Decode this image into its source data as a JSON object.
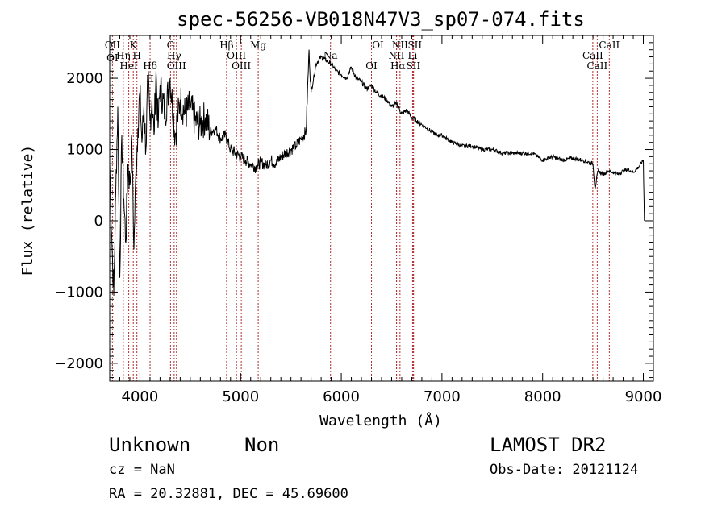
{
  "chart_data": {
    "type": "line",
    "title": "spec-56256-VB018N47V3_sp07-074.fits",
    "xlabel": "Wavelength (Å)",
    "ylabel": "Flux (relative)",
    "xlim": [
      3700,
      9100
    ],
    "ylim": [
      -2250,
      2600
    ],
    "xticks": [
      4000,
      5000,
      6000,
      7000,
      8000,
      9000
    ],
    "yticks": [
      -2000,
      -1000,
      0,
      1000,
      2000
    ],
    "xtick_labels": [
      "4000",
      "5000",
      "6000",
      "7000",
      "8000",
      "9000"
    ],
    "ytick_labels": [
      "−2000",
      "−1000",
      "0",
      "1000",
      "2000"
    ],
    "grid": false,
    "line_color": "#000000",
    "marker_color": "#b03030",
    "series": [
      {
        "x": [
          3700,
          3720,
          3740,
          3760,
          3780,
          3800,
          3820,
          3840,
          3860,
          3880,
          3900,
          3920,
          3940,
          3960,
          3980,
          4000,
          4020,
          4040,
          4060,
          4080,
          4100,
          4120,
          4140,
          4160,
          4180,
          4200,
          4250,
          4300,
          4350,
          4400,
          4450,
          4500,
          4550,
          4600,
          4650,
          4700,
          4750,
          4800,
          4850,
          4900,
          4950,
          5000,
          5050,
          5100,
          5150,
          5200,
          5250,
          5300,
          5350,
          5400,
          5450,
          5500,
          5550,
          5600,
          5650,
          5680,
          5700,
          5750,
          5800,
          5850,
          5900,
          5950,
          6000,
          6050,
          6100,
          6150,
          6200,
          6250,
          6300,
          6350,
          6400,
          6450,
          6500,
          6550,
          6600,
          6650,
          6700,
          6750,
          6800,
          6850,
          6900,
          6950,
          7000,
          7100,
          7200,
          7300,
          7400,
          7500,
          7600,
          7700,
          7800,
          7900,
          8000,
          8100,
          8200,
          8300,
          8400,
          8500,
          8520,
          8550,
          8600,
          8650,
          8700,
          8750,
          8800,
          8850,
          8900,
          8950,
          9000,
          9010
        ],
        "y": [
          800,
          -200,
          -1050,
          400,
          1600,
          -800,
          1200,
          300,
          -300,
          800,
          500,
          1100,
          -400,
          700,
          1300,
          1800,
          1100,
          1600,
          1000,
          2000,
          1400,
          1700,
          1200,
          2100,
          1300,
          1900,
          1500,
          2000,
          1200,
          1700,
          1500,
          1600,
          1400,
          1350,
          1450,
          1250,
          1300,
          1150,
          1200,
          1000,
          950,
          900,
          850,
          800,
          750,
          820,
          780,
          850,
          800,
          900,
          950,
          1000,
          1050,
          1150,
          1250,
          2400,
          1800,
          2200,
          2300,
          2250,
          2200,
          2100,
          2050,
          2000,
          2150,
          2000,
          1950,
          1850,
          1900,
          1800,
          1750,
          1700,
          1600,
          1650,
          1500,
          1550,
          1450,
          1400,
          1350,
          1300,
          1250,
          1200,
          1200,
          1100,
          1050,
          1050,
          1000,
          1000,
          950,
          950,
          950,
          950,
          850,
          900,
          850,
          880,
          850,
          800,
          450,
          700,
          650,
          700,
          680,
          650,
          700,
          720,
          680,
          750,
          850,
          0
        ]
      }
    ],
    "lines": [
      {
        "x": 3727,
        "labels": [
          "OII",
          "OI"
        ]
      },
      {
        "x": 3835,
        "labels": [
          "Hη"
        ]
      },
      {
        "x": 3889,
        "labels": [
          "HeI"
        ]
      },
      {
        "x": 3934,
        "labels": [
          "K"
        ]
      },
      {
        "x": 3970,
        "labels": [
          "H"
        ]
      },
      {
        "x": 4101,
        "labels": [
          "Hδ",
          "II"
        ]
      },
      {
        "x": 4304,
        "labels": [
          "G"
        ]
      },
      {
        "x": 4340,
        "labels": [
          "Hγ"
        ]
      },
      {
        "x": 4363,
        "labels": [
          "OIII"
        ]
      },
      {
        "x": 4861,
        "labels": [
          "Hβ"
        ]
      },
      {
        "x": 4959,
        "labels": [
          "OIII"
        ]
      },
      {
        "x": 5007,
        "labels": [
          "OIII"
        ]
      },
      {
        "x": 5175,
        "labels": [
          "Mg"
        ]
      },
      {
        "x": 5893,
        "labels": [
          "Na"
        ]
      },
      {
        "x": 6300,
        "labels": [
          "OI"
        ]
      },
      {
        "x": 6364,
        "labels": [
          "OI"
        ]
      },
      {
        "x": 6548,
        "labels": [
          "NII"
        ]
      },
      {
        "x": 6563,
        "labels": [
          "Hα"
        ]
      },
      {
        "x": 6583,
        "labels": [
          "NII"
        ]
      },
      {
        "x": 6708,
        "labels": [
          "Li"
        ]
      },
      {
        "x": 6716,
        "labels": [
          "SII"
        ]
      },
      {
        "x": 6731,
        "labels": [
          "SII"
        ]
      },
      {
        "x": 8498,
        "labels": [
          "CaII"
        ]
      },
      {
        "x": 8542,
        "labels": [
          "CaII"
        ]
      },
      {
        "x": 8662,
        "labels": [
          "CaII"
        ]
      }
    ]
  },
  "info": {
    "class": "Unknown",
    "subclass": "Non",
    "cz": "cz = NaN",
    "coords": "RA =  20.32881, DEC =  45.69600",
    "survey": "LAMOST DR2",
    "obs_date": "Obs-Date: 20121124"
  }
}
